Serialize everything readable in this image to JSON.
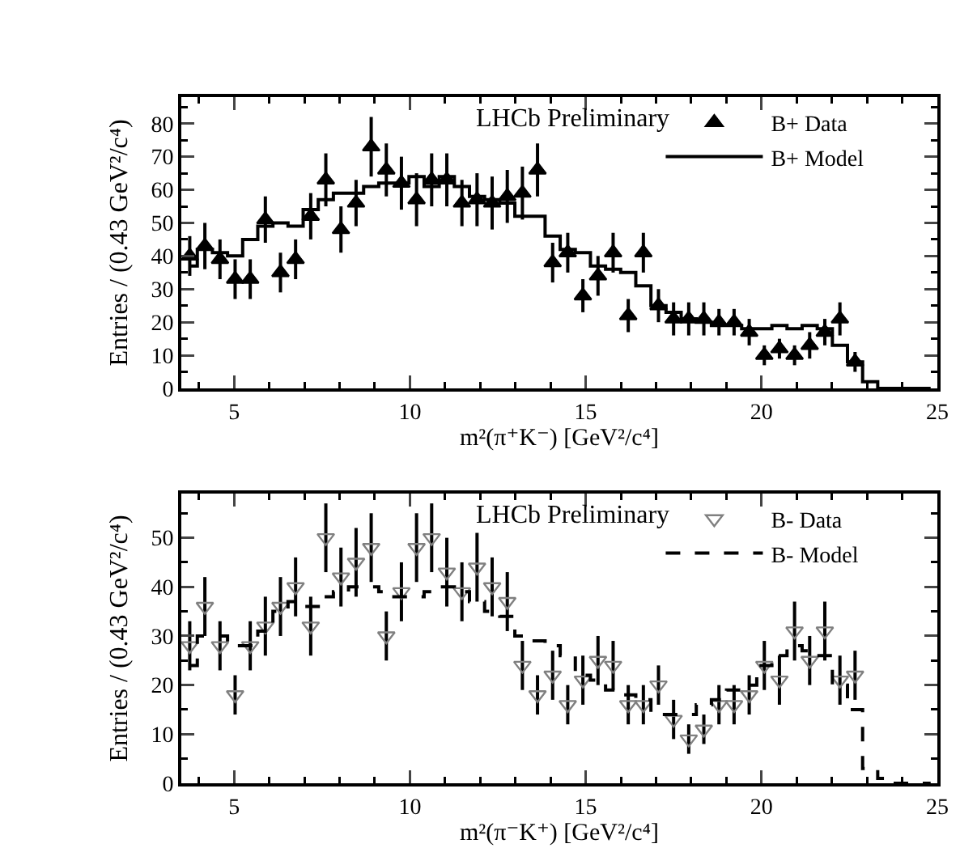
{
  "chart_data": [
    {
      "type": "scatter",
      "xlabel": "m²(π⁺K⁻) [GeV²/c⁴]",
      "ylabel": "Entries / (0.43 GeV²/c⁴)",
      "annotations": [
        "LHCb Preliminary"
      ],
      "xlim": [
        3.5,
        25
      ],
      "xticks": [
        5,
        10,
        15,
        20,
        25
      ],
      "ylim": [
        0,
        88
      ],
      "yticks": [
        0,
        10,
        20,
        30,
        40,
        50,
        60,
        70,
        80
      ],
      "grid": false,
      "legend": "top right",
      "x": [
        3.74,
        4.17,
        4.6,
        5.03,
        5.46,
        5.89,
        6.32,
        6.75,
        7.18,
        7.61,
        8.04,
        8.47,
        8.9,
        9.33,
        9.76,
        10.19,
        10.62,
        11.05,
        11.48,
        11.91,
        12.34,
        12.77,
        13.2,
        13.63,
        14.06,
        14.49,
        14.92,
        15.35,
        15.78,
        16.21,
        16.64,
        17.07,
        17.5,
        17.93,
        18.36,
        18.79,
        19.22,
        19.65,
        20.08,
        20.51,
        20.94,
        21.37,
        21.8,
        22.23,
        22.66
      ],
      "series": [
        {
          "name": "B+ Data",
          "type": "scatter",
          "marker": "triangle",
          "color": "#000000",
          "values": [
            40,
            43,
            39,
            33,
            33,
            51,
            35,
            39,
            52,
            63,
            48,
            56,
            73,
            66,
            62,
            57,
            63,
            63,
            56,
            57,
            56,
            58,
            59,
            66,
            38,
            41,
            28,
            34,
            41,
            22,
            41,
            25,
            21,
            21,
            21,
            20,
            20,
            17,
            10,
            12,
            10,
            13,
            17,
            21,
            8
          ],
          "errors": [
            6,
            7,
            6,
            6,
            6,
            7,
            6,
            6,
            7,
            8,
            7,
            7,
            9,
            8,
            8,
            8,
            8,
            8,
            7,
            8,
            8,
            8,
            8,
            8,
            6,
            6,
            5,
            6,
            6,
            5,
            6,
            5,
            5,
            5,
            5,
            4,
            4,
            4,
            3,
            3,
            3,
            4,
            4,
            5,
            3
          ]
        },
        {
          "name": "B+ Model",
          "type": "step",
          "line_style": "solid",
          "color": "#000000",
          "x": [
            3.74,
            4.17,
            4.6,
            5.03,
            5.46,
            5.89,
            6.32,
            6.75,
            7.18,
            7.61,
            8.04,
            8.47,
            8.9,
            9.33,
            9.76,
            10.19,
            10.62,
            11.05,
            11.48,
            11.91,
            12.34,
            12.77,
            13.2,
            13.63,
            14.06,
            14.49,
            14.92,
            15.35,
            15.78,
            16.21,
            16.64,
            17.07,
            17.5,
            17.93,
            18.36,
            18.79,
            19.22,
            19.65,
            20.08,
            20.51,
            20.94,
            21.37,
            21.8,
            22.23,
            22.66,
            23.09,
            23.52,
            23.95,
            24.38,
            24.81
          ],
          "values": [
            37,
            42,
            41,
            40,
            45,
            49,
            50,
            49,
            54,
            57,
            59,
            59,
            61,
            62,
            62,
            64,
            61,
            64,
            61,
            58,
            57,
            56,
            52,
            52,
            46,
            42,
            41,
            37,
            36,
            35,
            31,
            25,
            23,
            21,
            20,
            19,
            19,
            18,
            18,
            19,
            18,
            19,
            18,
            13,
            8,
            2,
            0,
            0,
            0,
            0
          ]
        }
      ]
    },
    {
      "type": "scatter",
      "xlabel": "m²(π⁻K⁺) [GeV²/c⁴]",
      "ylabel": "Entries / (0.43 GeV²/c⁴)",
      "annotations": [
        "LHCb Preliminary"
      ],
      "xlim": [
        3.5,
        25
      ],
      "xticks": [
        5,
        10,
        15,
        20,
        25
      ],
      "ylim": [
        0,
        59
      ],
      "yticks": [
        0,
        10,
        20,
        30,
        40,
        50
      ],
      "grid": false,
      "legend": "top right",
      "x": [
        3.74,
        4.17,
        4.6,
        5.03,
        5.46,
        5.89,
        6.32,
        6.75,
        7.18,
        7.61,
        8.04,
        8.47,
        8.9,
        9.33,
        9.76,
        10.19,
        10.62,
        11.05,
        11.48,
        11.91,
        12.34,
        12.77,
        13.2,
        13.63,
        14.06,
        14.49,
        14.92,
        15.35,
        15.78,
        16.21,
        16.64,
        17.07,
        17.5,
        17.93,
        18.36,
        18.79,
        19.22,
        19.65,
        20.08,
        20.51,
        20.94,
        21.37,
        21.8,
        22.23,
        22.66
      ],
      "series": [
        {
          "name": "B- Data",
          "type": "scatter",
          "marker": "triangle-down-open",
          "color": "#808080",
          "values": [
            28,
            36,
            28,
            18,
            28,
            32,
            36,
            40,
            32,
            50,
            42,
            45,
            48,
            30,
            39,
            48,
            50,
            43,
            39,
            44,
            40,
            37,
            24,
            18,
            22,
            16,
            21,
            25,
            24,
            16,
            16,
            20,
            13,
            9,
            11,
            16,
            16,
            18,
            24,
            21,
            31,
            25,
            31,
            21,
            22
          ],
          "errors": [
            5,
            6,
            5,
            4,
            5,
            6,
            6,
            6,
            6,
            7,
            6,
            7,
            7,
            5,
            6,
            7,
            7,
            7,
            6,
            7,
            6,
            6,
            5,
            4,
            5,
            4,
            5,
            5,
            5,
            4,
            4,
            4,
            4,
            3,
            3,
            4,
            4,
            4,
            5,
            5,
            6,
            5,
            6,
            5,
            5
          ]
        },
        {
          "name": "B- Model",
          "type": "step",
          "line_style": "dashed",
          "color": "#000000",
          "x": [
            3.74,
            4.17,
            4.6,
            5.03,
            5.46,
            5.89,
            6.32,
            6.75,
            7.18,
            7.61,
            8.04,
            8.47,
            8.9,
            9.33,
            9.76,
            10.19,
            10.62,
            11.05,
            11.48,
            11.91,
            12.34,
            12.77,
            13.2,
            13.63,
            14.06,
            14.49,
            14.92,
            15.35,
            15.78,
            16.21,
            16.64,
            17.07,
            17.5,
            17.93,
            18.36,
            18.79,
            19.22,
            19.65,
            20.08,
            20.51,
            20.94,
            21.37,
            21.8,
            22.23,
            22.66,
            23.09,
            23.52,
            23.95,
            24.38,
            24.81
          ],
          "values": [
            24,
            30,
            30,
            28,
            28,
            31,
            35,
            37,
            36,
            38,
            39,
            40,
            40,
            39,
            38,
            38,
            39,
            40,
            39,
            37,
            35,
            34,
            30,
            29,
            28,
            26,
            22,
            21,
            19,
            18,
            17,
            14,
            14,
            14,
            16,
            17,
            19,
            20,
            24,
            26,
            28,
            27,
            26,
            20,
            15,
            3,
            1,
            0,
            0,
            0
          ]
        }
      ]
    }
  ]
}
